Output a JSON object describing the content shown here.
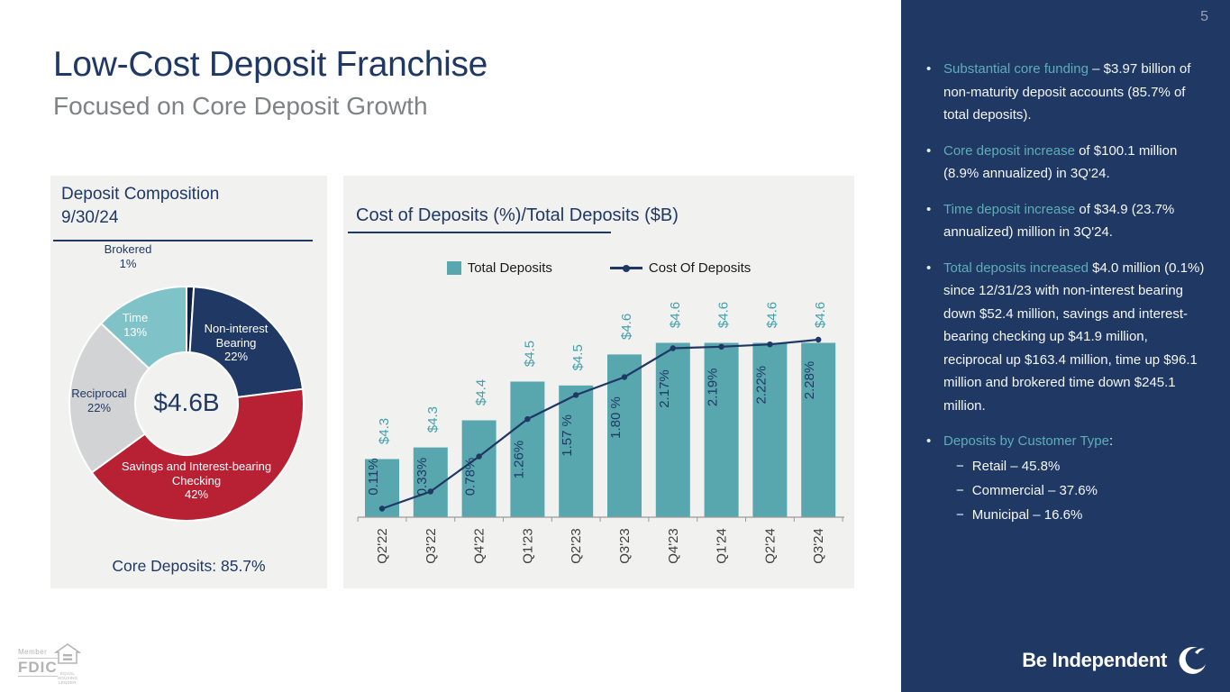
{
  "page_number": "5",
  "header": {
    "title": "Low-Cost Deposit Franchise",
    "subtitle": "Focused on Core Deposit Growth"
  },
  "chart_data": [
    {
      "type": "pie",
      "donut": true,
      "title_line1": "Deposit Composition",
      "title_line2": "9/30/24",
      "center_label": "$4.6B",
      "annotation": "Core Deposits: 85.7%",
      "segments": [
        {
          "label": "Brokered",
          "pct": "1%",
          "value": 1,
          "color": "#0D2240"
        },
        {
          "label": "Non-interest Bearing",
          "pct": "22%",
          "value": 22,
          "color": "#1F3864"
        },
        {
          "label": "Savings and Interest-bearing Checking",
          "pct": "42%",
          "value": 42,
          "color": "#B82034"
        },
        {
          "label": "Reciprocal",
          "pct": "22%",
          "value": 22,
          "color": "#D2D3D4"
        },
        {
          "label": "Time",
          "pct": "13%",
          "value": 13,
          "color": "#7FC3C9"
        }
      ]
    },
    {
      "type": "bar",
      "title": "Cost of Deposits (%)/Total Deposits ($B)",
      "legend_position": "top",
      "categories": [
        "Q2'22",
        "Q3'22",
        "Q4'22",
        "Q1'23",
        "Q2'23",
        "Q3'23",
        "Q4'23",
        "Q1'24",
        "Q2'24",
        "Q3'24"
      ],
      "series": [
        {
          "name": "Total Deposits",
          "kind": "bar",
          "labels": [
            "$4.3",
            "$4.3",
            "$4.4",
            "$4.5",
            "$4.5",
            "$4.6",
            "$4.6",
            "$4.6",
            "$4.6",
            "$4.6"
          ],
          "values": [
            4.3,
            4.33,
            4.4,
            4.5,
            4.49,
            4.57,
            4.6,
            4.6,
            4.6,
            4.6
          ],
          "axis_range": [
            4.15,
            4.65
          ],
          "color": "#58A7AF",
          "label_color": "#43A0AB"
        },
        {
          "name": "Cost Of Deposits",
          "kind": "line",
          "labels": [
            "0.11%",
            "0.33%",
            "0.78%",
            "1.26%",
            "1.57 %",
            "1.80 %",
            "2.17%",
            "2.19%",
            "2.22%",
            "2.28%"
          ],
          "values": [
            0.11,
            0.33,
            0.78,
            1.26,
            1.57,
            1.8,
            2.17,
            2.19,
            2.22,
            2.28
          ],
          "axis_range": [
            0,
            2.5
          ],
          "color": "#1F3864"
        }
      ]
    }
  ],
  "sidebar": {
    "bullets": [
      {
        "lead": "Substantial core funding",
        "rest": " – $3.97 billion of non-maturity deposit accounts (85.7% of total deposits)."
      },
      {
        "lead": "Core deposit increase",
        "rest": " of $100.1 million (8.9% annualized) in 3Q'24."
      },
      {
        "lead": "Time deposit increase",
        "rest": " of $34.9 (23.7% annualized) million in 3Q'24."
      },
      {
        "lead": "Total deposits increased",
        "rest": " $4.0 million (0.1%) since 12/31/23 with non-interest bearing down $52.4 million, savings and interest-bearing checking up $41.9 million, reciprocal up $163.4 million, time up $96.1 million and brokered time down $245.1 million."
      },
      {
        "lead": "Deposits by Customer Type",
        "rest": ":",
        "sub": [
          "Retail – 45.8%",
          "Commercial – 37.6%",
          "Municipal – 16.6%"
        ]
      }
    ],
    "brand": "Be Independent"
  },
  "footer_logos": {
    "member": "Member",
    "fdic": "FDIC",
    "equal_housing": "EQUAL HOUSING LENDER"
  }
}
